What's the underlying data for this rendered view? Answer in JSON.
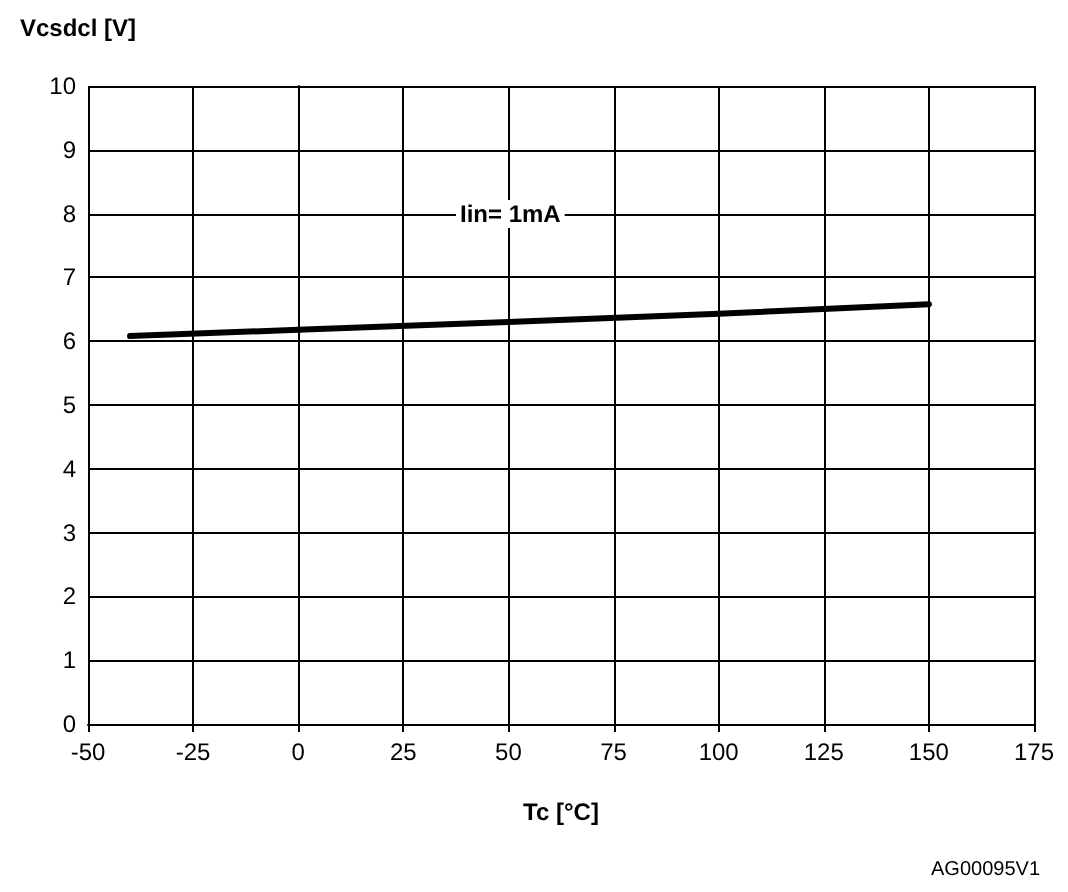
{
  "chart_data": {
    "type": "line",
    "xlabel": "Tc [°C]",
    "ylabel": "Vcsdcl [V]",
    "annotations": [
      "Iin= 1mA",
      "AG00095V1"
    ],
    "series": [
      {
        "color": "#000000",
        "x": [
          -40,
          0,
          50,
          100,
          150
        ],
        "values": [
          6.08,
          6.18,
          6.3,
          6.43,
          6.58
        ]
      }
    ],
    "xlim": [
      -50,
      175
    ],
    "xticks": [
      -50,
      -25,
      0,
      25,
      50,
      75,
      100,
      125,
      150,
      175
    ],
    "ylim": [
      0,
      10
    ],
    "yticks": [
      0,
      1,
      2,
      3,
      4,
      5,
      6,
      7,
      8,
      9,
      10
    ],
    "grid": true,
    "marker": "none",
    "line_style": "solid"
  }
}
